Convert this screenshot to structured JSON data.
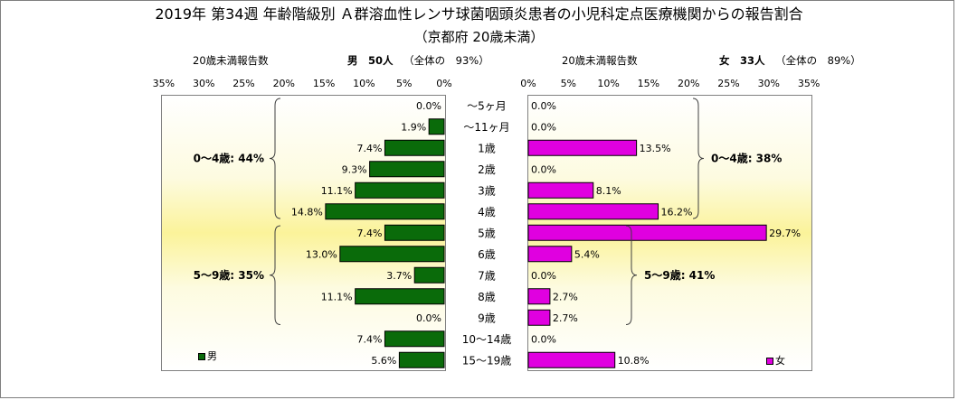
{
  "title": "2019年 第34週 年齢階級別 Ａ群溶血性レンサ球菌咽頭炎患者の小児科定点医療機関からの報告割合",
  "subtitle": "（京都府 20歳未満）",
  "chart_data": {
    "type": "bar",
    "orientation": "horizontal-pyramid",
    "categories": [
      "～5ヶ月",
      "～11ヶ月",
      "1歳",
      "2歳",
      "3歳",
      "4歳",
      "5歳",
      "6歳",
      "7歳",
      "8歳",
      "9歳",
      "10～14歳",
      "15～19歳"
    ],
    "left_axis_label": "20歳未満報告数",
    "right_axis_label": "20歳未満報告数",
    "ticks": [
      0,
      5,
      10,
      15,
      20,
      25,
      30,
      35
    ],
    "tick_labels": [
      "0%",
      "5%",
      "10%",
      "15%",
      "20%",
      "25%",
      "30%",
      "35%"
    ],
    "xlim": [
      0,
      35
    ],
    "male": {
      "name": "男",
      "header": "男　50人",
      "share": "（全体の　93%）",
      "color": "#0a6b0a",
      "values": [
        0.0,
        1.9,
        7.4,
        9.3,
        11.1,
        14.8,
        7.4,
        13.0,
        3.7,
        11.1,
        0.0,
        7.4,
        5.6
      ],
      "value_labels": [
        "0.0%",
        "1.9%",
        "7.4%",
        "9.3%",
        "11.1%",
        "14.8%",
        "7.4%",
        "13.0%",
        "3.7%",
        "11.1%",
        "0.0%",
        "7.4%",
        "5.6%"
      ],
      "groups": [
        {
          "label": "0～4歳: 44%",
          "from": 0,
          "to": 5
        },
        {
          "label": "5～9歳: 35%",
          "from": 6,
          "to": 10
        }
      ]
    },
    "female": {
      "name": "女",
      "header": "女　33人",
      "share": "（全体の　89%）",
      "color": "#e000e0",
      "values": [
        0.0,
        0.0,
        13.5,
        0.0,
        8.1,
        16.2,
        29.7,
        5.4,
        0.0,
        2.7,
        2.7,
        0.0,
        10.8
      ],
      "value_labels": [
        "0.0%",
        "0.0%",
        "13.5%",
        "0.0%",
        "8.1%",
        "16.2%",
        "29.7%",
        "5.4%",
        "0.0%",
        "2.7%",
        "2.7%",
        "0.0%",
        "10.8%"
      ],
      "groups": [
        {
          "label": "0～4歳: 38%",
          "from": 0,
          "to": 5
        },
        {
          "label": "5～9歳: 41%",
          "from": 6,
          "to": 10
        }
      ]
    }
  }
}
